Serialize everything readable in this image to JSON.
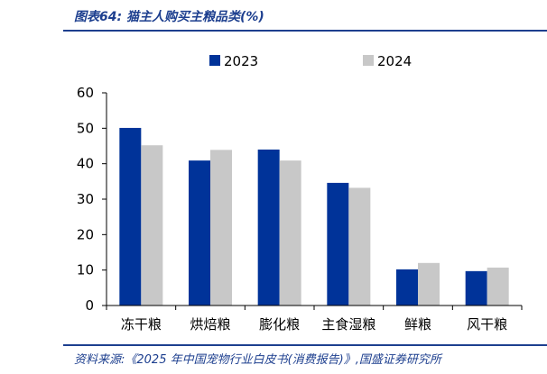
{
  "header": {
    "title": "图表64:  猫主人购买主粮品类(%)"
  },
  "footer": {
    "source": "资料来源:《2025 年中国宠物行业白皮书(消费报告)》,国盛证券研究所"
  },
  "colors": {
    "series_2023": "#003399",
    "series_2024": "#c8c8c8",
    "rule": "#1d3f8f"
  },
  "chart_data": {
    "type": "bar",
    "categories": [
      "冻干粮",
      "烘焙粮",
      "膨化粮",
      "主食湿粮",
      "鲜粮",
      "风干粮"
    ],
    "series": [
      {
        "name": "2023",
        "values": [
          50.1,
          40.9,
          44.0,
          34.6,
          10.2,
          9.7
        ]
      },
      {
        "name": "2024",
        "values": [
          45.2,
          43.9,
          40.9,
          33.2,
          12.0,
          10.7
        ]
      }
    ],
    "ylim": [
      0,
      60
    ],
    "yticks": [
      0,
      10,
      20,
      30,
      40,
      50,
      60
    ],
    "legend_position": "top-center",
    "grid": false
  }
}
